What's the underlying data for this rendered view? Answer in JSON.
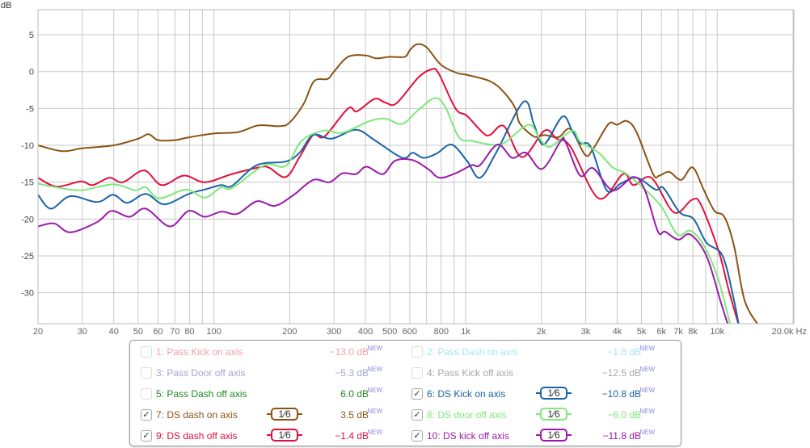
{
  "chart_data": {
    "type": "line",
    "ylabel": "dB",
    "xunit": "Hz",
    "xscale": "log",
    "xlim": [
      20,
      20000
    ],
    "ylim": [
      -34.2,
      8.4
    ],
    "grid": true,
    "yticks": [
      5,
      0,
      -5,
      -10,
      -15,
      -20,
      -25,
      -30
    ],
    "xticks": [
      {
        "v": 20,
        "t": "20"
      },
      {
        "v": 30,
        "t": "30"
      },
      {
        "v": 40,
        "t": "40"
      },
      {
        "v": 50,
        "t": "50"
      },
      {
        "v": 60,
        "t": "60"
      },
      {
        "v": 70,
        "t": "70"
      },
      {
        "v": 80,
        "t": "80"
      },
      {
        "v": 100,
        "t": "100"
      },
      {
        "v": 200,
        "t": "200"
      },
      {
        "v": 300,
        "t": "300"
      },
      {
        "v": 400,
        "t": "400"
      },
      {
        "v": 500,
        "t": "500"
      },
      {
        "v": 600,
        "t": "600"
      },
      {
        "v": 800,
        "t": "800"
      },
      {
        "v": 1000,
        "t": "1k"
      },
      {
        "v": 2000,
        "t": "2k"
      },
      {
        "v": 3000,
        "t": "3k"
      },
      {
        "v": 4000,
        "t": "4k"
      },
      {
        "v": 5000,
        "t": "5k"
      },
      {
        "v": 6000,
        "t": "6k"
      },
      {
        "v": 7000,
        "t": "7k"
      },
      {
        "v": 8000,
        "t": "8k"
      },
      {
        "v": 10000,
        "t": "10k"
      },
      {
        "v": 20000,
        "t": "20.0k Hz"
      }
    ],
    "series": [
      {
        "name": "7: DS dash on axis",
        "color": "#8a5414",
        "points": [
          [
            20,
            -10
          ],
          [
            25,
            -10.8
          ],
          [
            30,
            -10.4
          ],
          [
            40,
            -10
          ],
          [
            50,
            -9.1
          ],
          [
            55,
            -8.5
          ],
          [
            60,
            -9.3
          ],
          [
            70,
            -9.3
          ],
          [
            80,
            -8.9
          ],
          [
            100,
            -8.4
          ],
          [
            125,
            -8.2
          ],
          [
            150,
            -7.3
          ],
          [
            182,
            -7.4
          ],
          [
            200,
            -6.9
          ],
          [
            227,
            -4.4
          ],
          [
            250,
            -1.3
          ],
          [
            283,
            -1.0
          ],
          [
            300,
            0
          ],
          [
            341,
            2.0
          ],
          [
            400,
            2.2
          ],
          [
            442,
            1.8
          ],
          [
            500,
            2.0
          ],
          [
            573,
            2.0
          ],
          [
            600,
            2.9
          ],
          [
            640,
            3.7
          ],
          [
            700,
            3.3
          ],
          [
            800,
            0.9
          ],
          [
            927,
            -0.2
          ],
          [
            1000,
            -0.4
          ],
          [
            1250,
            -1.3
          ],
          [
            1420,
            -2.8
          ],
          [
            1578,
            -5.0
          ],
          [
            1640,
            -7.0
          ],
          [
            1871,
            -8.8
          ],
          [
            2061,
            -8.6
          ],
          [
            2338,
            -8.9
          ],
          [
            2612,
            -7.8
          ],
          [
            2985,
            -11.3
          ],
          [
            3210,
            -10.5
          ],
          [
            3700,
            -7.1
          ],
          [
            4000,
            -7.2
          ],
          [
            4380,
            -6.7
          ],
          [
            4790,
            -8.3
          ],
          [
            5560,
            -13.9
          ],
          [
            5890,
            -14.1
          ],
          [
            6440,
            -13.6
          ],
          [
            7190,
            -14.7
          ],
          [
            7980,
            -13.0
          ],
          [
            8850,
            -16.1
          ],
          [
            9750,
            -18.9
          ],
          [
            10670,
            -19.7
          ],
          [
            11650,
            -23.6
          ],
          [
            12830,
            -31
          ],
          [
            14550,
            -34.4
          ]
        ]
      },
      {
        "name": "9: DS dash off axis",
        "color": "#e0103c",
        "points": [
          [
            20,
            -14.4
          ],
          [
            23.7,
            -15.6
          ],
          [
            29.6,
            -14.9
          ],
          [
            33,
            -15.4
          ],
          [
            38.4,
            -14.4
          ],
          [
            43.5,
            -15.0
          ],
          [
            52.8,
            -13.4
          ],
          [
            62,
            -15.4
          ],
          [
            76,
            -14.1
          ],
          [
            92,
            -15.0
          ],
          [
            118,
            -13.9
          ],
          [
            151,
            -13.0
          ],
          [
            165,
            -13.0
          ],
          [
            193,
            -14.3
          ],
          [
            219,
            -11.6
          ],
          [
            248,
            -8.6
          ],
          [
            275,
            -8.8
          ],
          [
            341,
            -5.0
          ],
          [
            370,
            -5.4
          ],
          [
            435,
            -3.7
          ],
          [
            480,
            -4.2
          ],
          [
            531,
            -4.3
          ],
          [
            649,
            -0.8
          ],
          [
            731,
            0.3
          ],
          [
            780,
            -0.2
          ],
          [
            912,
            -5.0
          ],
          [
            1012,
            -6.0
          ],
          [
            1172,
            -8.3
          ],
          [
            1250,
            -8.6
          ],
          [
            1422,
            -7.4
          ],
          [
            1675,
            -11.6
          ],
          [
            2061,
            -8.0
          ],
          [
            2300,
            -9.1
          ],
          [
            2612,
            -10.2
          ],
          [
            3380,
            -17.2
          ],
          [
            4226,
            -13.9
          ],
          [
            4650,
            -15.4
          ],
          [
            5470,
            -14.4
          ],
          [
            6730,
            -19.1
          ],
          [
            7930,
            -17.4
          ],
          [
            8600,
            -18.0
          ],
          [
            10120,
            -24.3
          ],
          [
            11060,
            -29.4
          ],
          [
            12190,
            -34.5
          ]
        ]
      },
      {
        "name": "6: DS Kick on axis",
        "color": "#1a64a8",
        "points": [
          [
            20,
            -16.7
          ],
          [
            22.5,
            -18.6
          ],
          [
            26.9,
            -16.9
          ],
          [
            34.4,
            -17.7
          ],
          [
            39.8,
            -16.7
          ],
          [
            45.2,
            -17.8
          ],
          [
            53.6,
            -16.6
          ],
          [
            63.5,
            -18.0
          ],
          [
            79.3,
            -16.6
          ],
          [
            91.9,
            -16.0
          ],
          [
            107,
            -15.4
          ],
          [
            118,
            -15.5
          ],
          [
            148,
            -12.7
          ],
          [
            193,
            -12.2
          ],
          [
            219,
            -11.0
          ],
          [
            248,
            -8.6
          ],
          [
            294,
            -9.1
          ],
          [
            367,
            -7.9
          ],
          [
            435,
            -9.3
          ],
          [
            560,
            -11.7
          ],
          [
            616,
            -11.0
          ],
          [
            679,
            -11.7
          ],
          [
            769,
            -11.1
          ],
          [
            880,
            -9.9
          ],
          [
            1012,
            -12.1
          ],
          [
            1140,
            -14.4
          ],
          [
            1322,
            -11.0
          ],
          [
            1700,
            -4.1
          ],
          [
            1871,
            -7.2
          ],
          [
            2047,
            -9.9
          ],
          [
            2426,
            -6.1
          ],
          [
            2650,
            -8.0
          ],
          [
            2852,
            -9.7
          ],
          [
            3140,
            -10.2
          ],
          [
            3640,
            -16.1
          ],
          [
            4130,
            -15.2
          ],
          [
            4790,
            -14.4
          ],
          [
            5680,
            -16.0
          ],
          [
            6120,
            -15.8
          ],
          [
            7090,
            -19.1
          ],
          [
            8050,
            -20.0
          ],
          [
            9060,
            -23.2
          ],
          [
            10500,
            -25.0
          ],
          [
            11650,
            -31
          ],
          [
            12190,
            -34.5
          ]
        ]
      },
      {
        "name": "8: DS door off axis",
        "color": "#7ee87a",
        "points": [
          [
            20,
            -15.2
          ],
          [
            23.7,
            -15.7
          ],
          [
            29.6,
            -16.1
          ],
          [
            39.8,
            -15.3
          ],
          [
            48.6,
            -16.1
          ],
          [
            53.6,
            -15.7
          ],
          [
            60.7,
            -17.2
          ],
          [
            77.5,
            -16.0
          ],
          [
            91.9,
            -17.1
          ],
          [
            107,
            -15.7
          ],
          [
            118,
            -15.8
          ],
          [
            159,
            -12.7
          ],
          [
            193,
            -12.8
          ],
          [
            223,
            -9.4
          ],
          [
            273,
            -8.0
          ],
          [
            324,
            -8.3
          ],
          [
            416,
            -6.7
          ],
          [
            483,
            -6.4
          ],
          [
            560,
            -7.1
          ],
          [
            649,
            -5.2
          ],
          [
            753,
            -3.6
          ],
          [
            828,
            -4.7
          ],
          [
            940,
            -8.9
          ],
          [
            1058,
            -9.4
          ],
          [
            1264,
            -9.9
          ],
          [
            1422,
            -9.7
          ],
          [
            1778,
            -7.2
          ],
          [
            1972,
            -9.1
          ],
          [
            2170,
            -10.2
          ],
          [
            2650,
            -8.0
          ],
          [
            2852,
            -9.5
          ],
          [
            3380,
            -11.0
          ],
          [
            3840,
            -13.0
          ],
          [
            4320,
            -13.8
          ],
          [
            5010,
            -15.6
          ],
          [
            5990,
            -18.3
          ],
          [
            6940,
            -22.1
          ],
          [
            7820,
            -21.6
          ],
          [
            8850,
            -23.6
          ],
          [
            10050,
            -28.0
          ],
          [
            11300,
            -34.5
          ]
        ]
      },
      {
        "name": "10: DS kick off axis",
        "color": "#9a1aaa",
        "points": [
          [
            20,
            -21.0
          ],
          [
            23.2,
            -20.6
          ],
          [
            26.9,
            -21.8
          ],
          [
            34.4,
            -20.4
          ],
          [
            39.2,
            -18.9
          ],
          [
            46.2,
            -19.7
          ],
          [
            53.6,
            -18.6
          ],
          [
            66.8,
            -21.0
          ],
          [
            79.3,
            -18.9
          ],
          [
            91.9,
            -19.7
          ],
          [
            107,
            -19.0
          ],
          [
            124,
            -19.3
          ],
          [
            148,
            -17.6
          ],
          [
            175,
            -18.2
          ],
          [
            208,
            -16.7
          ],
          [
            248,
            -14.7
          ],
          [
            288,
            -15.0
          ],
          [
            324,
            -13.8
          ],
          [
            367,
            -13.9
          ],
          [
            404,
            -12.9
          ],
          [
            469,
            -13.9
          ],
          [
            524,
            -12.1
          ],
          [
            616,
            -12.0
          ],
          [
            715,
            -13.3
          ],
          [
            787,
            -14.4
          ],
          [
            912,
            -13.8
          ],
          [
            1058,
            -12.7
          ],
          [
            1140,
            -12.7
          ],
          [
            1340,
            -9.9
          ],
          [
            1532,
            -11.7
          ],
          [
            1738,
            -11.0
          ],
          [
            2015,
            -13.2
          ],
          [
            2390,
            -9.4
          ],
          [
            2500,
            -9.6
          ],
          [
            2852,
            -14.1
          ],
          [
            3210,
            -13.1
          ],
          [
            3840,
            -16.1
          ],
          [
            4650,
            -14.3
          ],
          [
            5160,
            -16.1
          ],
          [
            5810,
            -21.7
          ],
          [
            6200,
            -21.7
          ],
          [
            6990,
            -22.8
          ],
          [
            7820,
            -22.1
          ],
          [
            9060,
            -25.0
          ],
          [
            10270,
            -31.0
          ],
          [
            11060,
            -34.5
          ]
        ]
      }
    ]
  },
  "legend": [
    {
      "label": "1: Pass Kick on axis",
      "value": "−13.0 dB",
      "new": "NEW",
      "checked": false,
      "color": "#f0a0ac"
    },
    {
      "label": "2: Pass Dash on axis",
      "value": "−1.8 dB",
      "new": "NEW",
      "checked": false,
      "color": "#a6e6f2"
    },
    {
      "label": "3: Pass Door off axis",
      "value": "−5.3 dB",
      "new": "NEW",
      "checked": false,
      "color": "#a4a4d6"
    },
    {
      "label": "4: Pass Kick off axis",
      "value": "−12.5 dB",
      "new": "NEW",
      "checked": false,
      "color": "#a8a8a8"
    },
    {
      "label": "5: Pass Dash off axis",
      "value": "6.0 dB",
      "new": "NEW",
      "checked": false,
      "color": "#1e8a1e"
    },
    {
      "label": "6: DS Kick on axis",
      "value": "−10.8 dB",
      "new": "NEW",
      "checked": true,
      "color": "#1a64a8",
      "smoothing": "1⁄6"
    },
    {
      "label": "7: DS dash on axis",
      "value": "3.5 dB",
      "new": "NEW",
      "checked": true,
      "color": "#8a5414",
      "smoothing": "1⁄6"
    },
    {
      "label": "8: DS door off axis",
      "value": "−6.0 dB",
      "new": "NEW",
      "checked": true,
      "color": "#7ee87a",
      "smoothing": "1⁄6"
    },
    {
      "label": "9: DS dash off axis",
      "value": "−1.4 dB",
      "new": "NEW",
      "checked": true,
      "color": "#e0103c",
      "smoothing": "1⁄6"
    },
    {
      "label": "10: DS kick off axis",
      "value": "−11.8 dB",
      "new": "NEW",
      "checked": true,
      "color": "#9a1aaa",
      "smoothing": "1⁄6"
    }
  ],
  "check_mark": "✓"
}
